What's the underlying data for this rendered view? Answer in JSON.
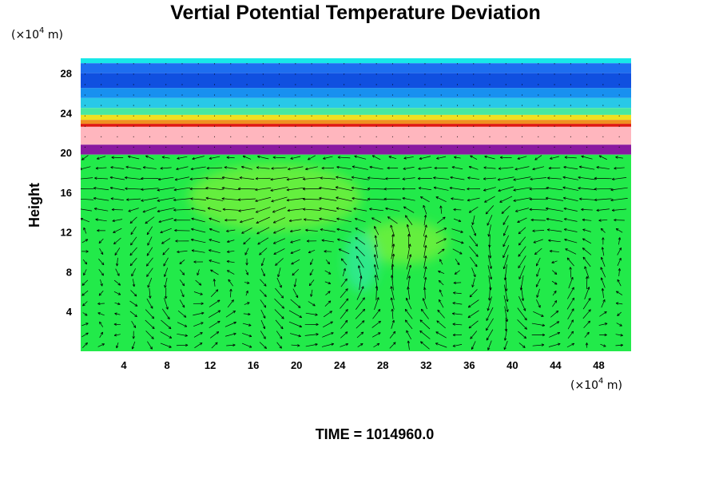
{
  "chart_data": {
    "type": "heatmap",
    "title": "Vertial Potential Temperature Deviation",
    "ylabel": "Height",
    "x_unit_prefix": "(×10",
    "x_unit_exp": "4",
    "x_unit_suffix": " m)",
    "y_unit_prefix": "(×10",
    "y_unit_exp": "4",
    "y_unit_suffix": " m)",
    "x_ticks": [
      "4",
      "8",
      "12",
      "16",
      "20",
      "24",
      "28",
      "32",
      "36",
      "40",
      "44",
      "48"
    ],
    "y_ticks": [
      "4",
      "8",
      "12",
      "16",
      "20",
      "24",
      "28"
    ],
    "xlim": [
      0,
      51
    ],
    "ylim": [
      0,
      29.5
    ],
    "overlay": "velocity vectors",
    "bands": [
      {
        "y0": 29.0,
        "y1": 29.5,
        "color": "#18e8e8"
      },
      {
        "y0": 28.0,
        "y1": 29.0,
        "color": "#1e6ef0"
      },
      {
        "y0": 26.5,
        "y1": 28.0,
        "color": "#1050e0"
      },
      {
        "y0": 25.5,
        "y1": 26.5,
        "color": "#1890f0"
      },
      {
        "y0": 24.5,
        "y1": 25.5,
        "color": "#28c8e8"
      },
      {
        "y0": 23.8,
        "y1": 24.5,
        "color": "#48e8a0"
      },
      {
        "y0": 23.3,
        "y1": 23.8,
        "color": "#f0e020"
      },
      {
        "y0": 22.9,
        "y1": 23.3,
        "color": "#f09020"
      },
      {
        "y0": 22.6,
        "y1": 22.9,
        "color": "#e01810"
      },
      {
        "y0": 20.8,
        "y1": 22.6,
        "color": "#ffb6be"
      },
      {
        "y0": 19.8,
        "y1": 20.8,
        "color": "#8a1aa0"
      },
      {
        "y0": 0,
        "y1": 19.8,
        "color": "#22ea4a"
      }
    ],
    "field_colors": {
      "base": "#22ea4a",
      "light": "#7af03a",
      "cyan": "#30e8a0"
    },
    "cells": [
      {
        "x0": 12,
        "x1": 26,
        "y0": 12,
        "y1": 19.8,
        "cx": 18,
        "cy": 15.5,
        "rx": 8,
        "ry": 3.4,
        "color": "light"
      },
      {
        "x0": 26,
        "x1": 36,
        "y0": 9,
        "y1": 13,
        "cx": 30,
        "cy": 11,
        "rx": 4,
        "ry": 2.2,
        "color": "light"
      },
      {
        "cx": 26,
        "cy": 9,
        "rx": 1.6,
        "ry": 3,
        "color": "cyan"
      }
    ],
    "vortices": [
      {
        "cx": 10,
        "cy": 7,
        "rx": 4,
        "ry": 5.5,
        "dir": 1
      },
      {
        "cx": 22,
        "cy": 7.5,
        "rx": 6,
        "ry": 6,
        "dir": 1
      },
      {
        "cx": 34.5,
        "cy": 7.5,
        "rx": 4.5,
        "ry": 6,
        "dir": -1
      },
      {
        "cx": 43,
        "cy": 7,
        "rx": 4,
        "ry": 5.5,
        "dir": 1
      }
    ],
    "time_label": "TIME = 1014960.0"
  }
}
